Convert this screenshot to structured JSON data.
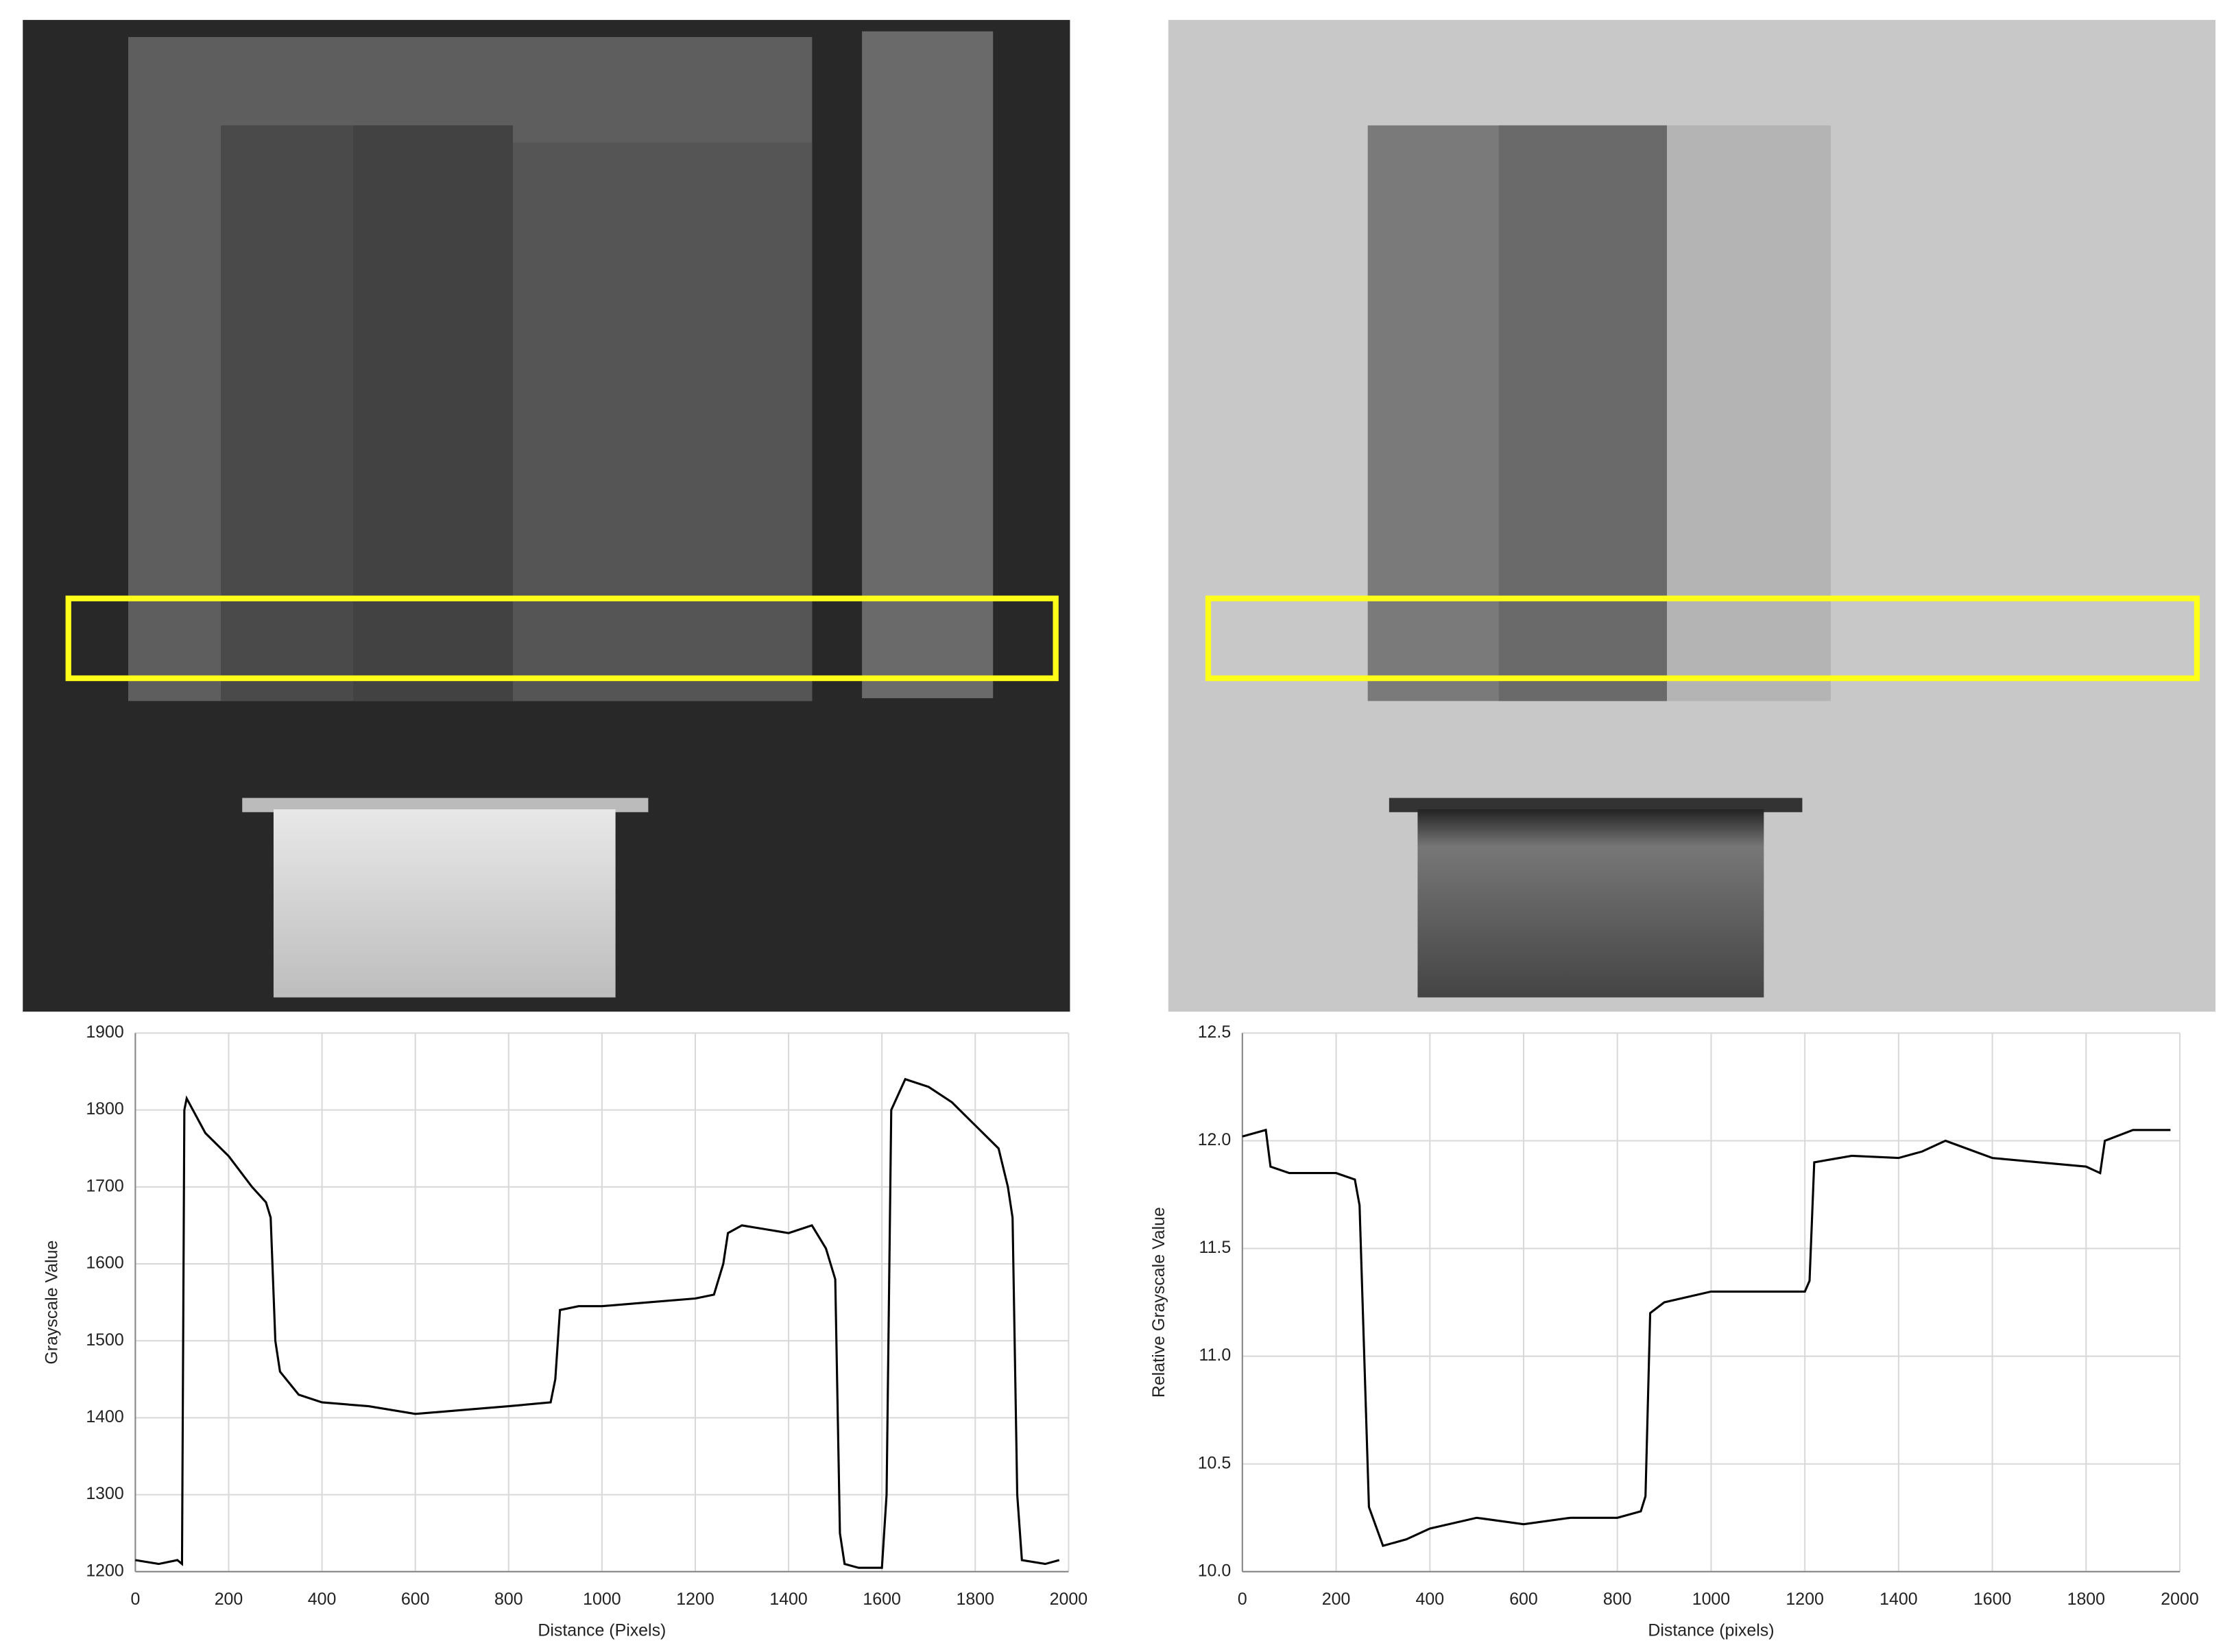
{
  "chart_data": [
    {
      "type": "line",
      "xlabel": "Distance (Pixels)",
      "ylabel": "Grayscale Value",
      "xlim": [
        0,
        2000
      ],
      "ylim": [
        1200,
        1900
      ],
      "xticks": [
        0,
        200,
        400,
        600,
        800,
        1000,
        1200,
        1400,
        1600,
        1800,
        2000
      ],
      "yticks": [
        1200,
        1300,
        1400,
        1500,
        1600,
        1700,
        1800,
        1900
      ],
      "grid": true,
      "series": [
        {
          "color": "#000000",
          "x": [
            0,
            50,
            90,
            100,
            105,
            110,
            150,
            200,
            250,
            280,
            290,
            300,
            310,
            350,
            400,
            500,
            600,
            700,
            800,
            890,
            900,
            910,
            950,
            1000,
            1100,
            1200,
            1240,
            1260,
            1270,
            1300,
            1350,
            1400,
            1450,
            1480,
            1500,
            1510,
            1520,
            1550,
            1600,
            1610,
            1620,
            1650,
            1700,
            1750,
            1800,
            1850,
            1870,
            1880,
            1890,
            1900,
            1950,
            1980
          ],
          "values": [
            1215,
            1210,
            1215,
            1210,
            1800,
            1815,
            1770,
            1740,
            1700,
            1680,
            1660,
            1500,
            1460,
            1430,
            1420,
            1415,
            1405,
            1410,
            1415,
            1420,
            1450,
            1540,
            1545,
            1545,
            1550,
            1555,
            1560,
            1600,
            1640,
            1650,
            1645,
            1640,
            1650,
            1620,
            1580,
            1250,
            1210,
            1205,
            1205,
            1300,
            1800,
            1840,
            1830,
            1810,
            1780,
            1750,
            1700,
            1660,
            1300,
            1215,
            1210,
            1215
          ]
        }
      ]
    },
    {
      "type": "line",
      "xlabel": "Distance (pixels)",
      "ylabel": "Relative Grayscale Value",
      "xlim": [
        0,
        2000
      ],
      "ylim": [
        10,
        12.5
      ],
      "xticks": [
        0,
        200,
        400,
        600,
        800,
        1000,
        1200,
        1400,
        1600,
        1800,
        2000
      ],
      "yticks": [
        {
          "value": 10,
          "label": "10.0"
        },
        10.5,
        {
          "value": 11,
          "label": "11.0"
        },
        11.5,
        {
          "value": 12,
          "label": "12.0"
        },
        12.5
      ],
      "grid": true,
      "series": [
        {
          "color": "#000000",
          "x": [
            0,
            50,
            60,
            100,
            150,
            200,
            240,
            250,
            260,
            270,
            300,
            350,
            400,
            500,
            600,
            700,
            800,
            850,
            860,
            870,
            900,
            1000,
            1100,
            1200,
            1210,
            1220,
            1300,
            1400,
            1450,
            1500,
            1600,
            1700,
            1800,
            1830,
            1840,
            1900,
            1980
          ],
          "values": [
            12.02,
            12.05,
            11.88,
            11.85,
            11.85,
            11.85,
            11.82,
            11.7,
            11.0,
            10.3,
            10.12,
            10.15,
            10.2,
            10.25,
            10.22,
            10.25,
            10.25,
            10.28,
            10.35,
            11.2,
            11.25,
            11.3,
            11.3,
            11.3,
            11.35,
            11.9,
            11.93,
            11.92,
            11.95,
            12.0,
            11.92,
            11.9,
            11.88,
            11.85,
            12.0,
            12.05,
            12.05
          ]
        }
      ]
    }
  ]
}
